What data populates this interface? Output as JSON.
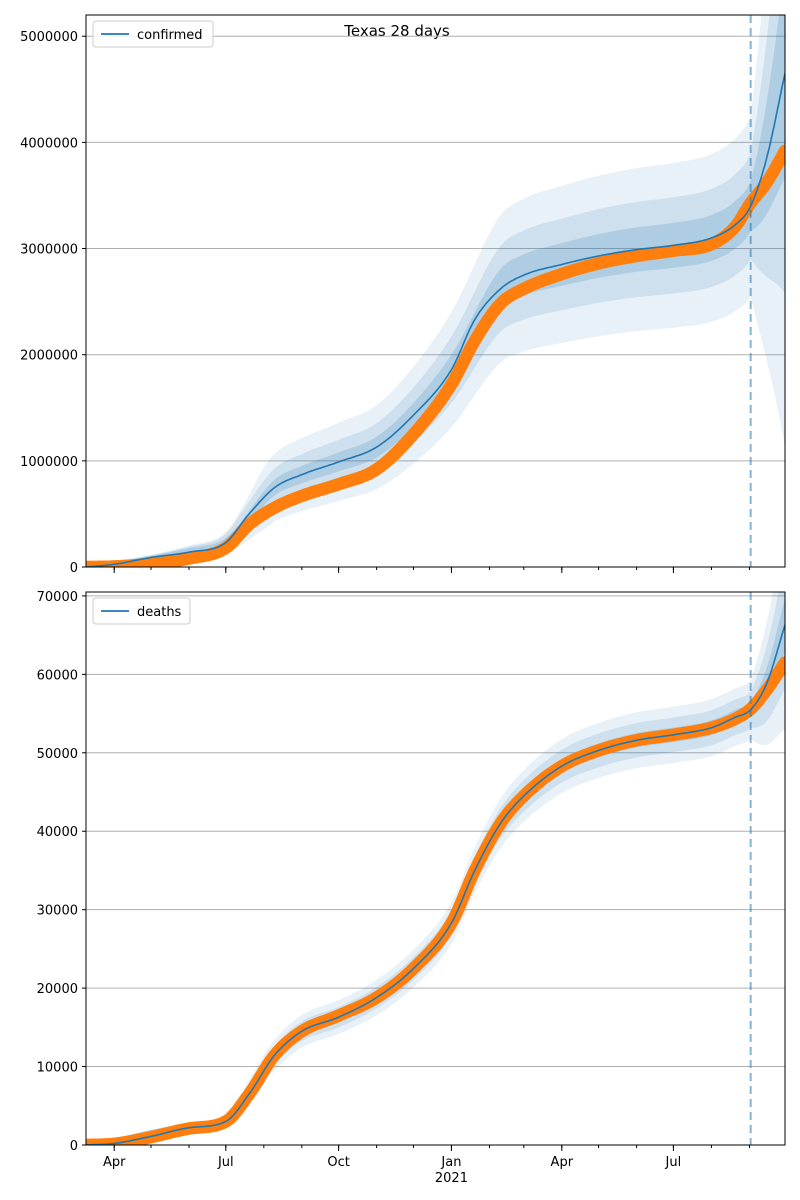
{
  "title": "Texas 28 days",
  "colors": {
    "model": "#1f77b4",
    "observed": "#ff7f0e",
    "band": "#1f77b4",
    "grid": "#b0b0b0",
    "forecast_line": "#1f77b4"
  },
  "x_axis": {
    "month_ticks": [
      {
        "date": "2020-04-01",
        "label": "Apr"
      },
      {
        "date": "2020-07-01",
        "label": "Jul"
      },
      {
        "date": "2020-10-01",
        "label": "Oct"
      },
      {
        "date": "2021-01-01",
        "label": "Jan"
      },
      {
        "date": "2021-04-01",
        "label": "Apr"
      },
      {
        "date": "2021-07-01",
        "label": "Jul"
      }
    ],
    "year_label": "2021",
    "range": [
      "2020-03-09",
      "2021-09-30"
    ]
  },
  "forecast_start": "2021-09-02",
  "chart_data": [
    {
      "type": "line",
      "name": "confirmed",
      "legend": "confirmed",
      "legend_position": "top-left",
      "ylim": [
        0,
        5200000
      ],
      "yticks": [
        0,
        1000000,
        2000000,
        3000000,
        4000000,
        5000000
      ],
      "ytick_labels": [
        "0",
        "1000000",
        "2000000",
        "3000000",
        "4000000",
        "5000000"
      ],
      "grid": "horizontal",
      "model": {
        "x": [
          "2020-03-09",
          "2020-04-01",
          "2020-05-01",
          "2020-06-01",
          "2020-07-01",
          "2020-07-20",
          "2020-08-10",
          "2020-09-01",
          "2020-10-01",
          "2020-11-01",
          "2020-12-01",
          "2021-01-01",
          "2021-01-20",
          "2021-02-10",
          "2021-03-01",
          "2021-04-01",
          "2021-05-01",
          "2021-06-01",
          "2021-07-01",
          "2021-08-01",
          "2021-08-20",
          "2021-09-02",
          "2021-09-15",
          "2021-09-30"
        ],
        "y": [
          0,
          25000,
          90000,
          140000,
          230000,
          500000,
          750000,
          870000,
          990000,
          1130000,
          1430000,
          1860000,
          2330000,
          2620000,
          2750000,
          2850000,
          2930000,
          2990000,
          3030000,
          3100000,
          3220000,
          3400000,
          3850000,
          4650000
        ]
      },
      "bands": {
        "x": [
          "2020-03-09",
          "2020-06-01",
          "2020-07-01",
          "2020-08-10",
          "2020-09-01",
          "2020-10-01",
          "2020-11-01",
          "2020-12-01",
          "2021-01-01",
          "2021-02-10",
          "2021-03-01",
          "2021-04-01",
          "2021-05-01",
          "2021-06-01",
          "2021-07-01",
          "2021-08-01",
          "2021-08-20",
          "2021-09-02",
          "2021-09-15",
          "2021-09-30"
        ],
        "y": [
          0,
          140000,
          230000,
          750000,
          870000,
          990000,
          1130000,
          1430000,
          1860000,
          2620000,
          2750000,
          2850000,
          2930000,
          2990000,
          3030000,
          3100000,
          3220000,
          3400000,
          3850000,
          4650000
        ],
        "spread": [
          [
            0.06,
            30000
          ],
          [
            0.12,
            90000
          ],
          [
            0.2,
            170000
          ]
        ],
        "opacity": [
          0.18,
          0.13,
          0.1
        ]
      },
      "observed": {
        "x": [
          "2020-03-09",
          "2020-04-01",
          "2020-05-01",
          "2020-06-01",
          "2020-07-01",
          "2020-07-20",
          "2020-08-10",
          "2020-09-01",
          "2020-10-01",
          "2020-11-01",
          "2020-12-01",
          "2021-01-01",
          "2021-01-20",
          "2021-02-10",
          "2021-03-01",
          "2021-04-01",
          "2021-05-01",
          "2021-06-01",
          "2021-07-01",
          "2021-08-01",
          "2021-08-20",
          "2021-09-02",
          "2021-09-15",
          "2021-09-30"
        ],
        "y": [
          0,
          5000,
          30000,
          80000,
          180000,
          400000,
          560000,
          670000,
          780000,
          920000,
          1250000,
          1720000,
          2130000,
          2480000,
          2620000,
          2760000,
          2860000,
          2930000,
          2980000,
          3040000,
          3200000,
          3430000,
          3620000,
          3920000
        ]
      }
    },
    {
      "type": "line",
      "name": "deaths",
      "legend": "deaths",
      "legend_position": "top-left",
      "ylim": [
        0,
        70500
      ],
      "yticks": [
        0,
        10000,
        20000,
        30000,
        40000,
        50000,
        60000,
        70000
      ],
      "ytick_labels": [
        "0",
        "10000",
        "20000",
        "30000",
        "40000",
        "50000",
        "60000",
        "70000"
      ],
      "grid": "horizontal",
      "model": {
        "x": [
          "2020-03-09",
          "2020-04-01",
          "2020-05-01",
          "2020-06-01",
          "2020-07-01",
          "2020-07-20",
          "2020-08-10",
          "2020-09-01",
          "2020-10-01",
          "2020-11-01",
          "2020-12-01",
          "2021-01-01",
          "2021-01-20",
          "2021-02-10",
          "2021-03-01",
          "2021-04-01",
          "2021-05-01",
          "2021-06-01",
          "2021-07-01",
          "2021-08-01",
          "2021-08-20",
          "2021-09-02",
          "2021-09-15",
          "2021-09-30"
        ],
        "y": [
          0,
          200,
          1100,
          2200,
          3000,
          6500,
          11500,
          14500,
          16300,
          18800,
          22500,
          28300,
          35000,
          41000,
          44500,
          48300,
          50300,
          51600,
          52300,
          53200,
          54500,
          55500,
          58800,
          66300
        ]
      },
      "bands": {
        "x": [
          "2020-03-09",
          "2020-06-01",
          "2020-07-01",
          "2020-08-10",
          "2020-09-01",
          "2020-10-01",
          "2020-11-01",
          "2020-12-01",
          "2021-01-01",
          "2021-01-20",
          "2021-02-10",
          "2021-03-01",
          "2021-04-01",
          "2021-05-01",
          "2021-06-01",
          "2021-07-01",
          "2021-08-01",
          "2021-08-20",
          "2021-09-02",
          "2021-09-15",
          "2021-09-30"
        ],
        "y": [
          0,
          2200,
          3000,
          11500,
          14500,
          16300,
          18800,
          22500,
          28300,
          35000,
          41000,
          44500,
          48300,
          50300,
          51600,
          52300,
          53200,
          54500,
          55500,
          58800,
          66300
        ],
        "spread": [
          [
            0.01,
            400
          ],
          [
            0.025,
            900
          ],
          [
            0.04,
            1500
          ]
        ],
        "opacity": [
          0.18,
          0.13,
          0.1
        ]
      },
      "observed": {
        "x": [
          "2020-03-09",
          "2020-04-01",
          "2020-05-01",
          "2020-06-01",
          "2020-07-01",
          "2020-07-20",
          "2020-08-10",
          "2020-09-01",
          "2020-10-01",
          "2020-11-01",
          "2020-12-01",
          "2021-01-01",
          "2021-01-20",
          "2021-02-10",
          "2021-03-01",
          "2021-04-01",
          "2021-05-01",
          "2021-06-01",
          "2021-07-01",
          "2021-08-01",
          "2021-08-20",
          "2021-09-02",
          "2021-09-15",
          "2021-09-30"
        ],
        "y": [
          0,
          150,
          1000,
          2100,
          3000,
          6500,
          11500,
          14500,
          16500,
          18800,
          22500,
          28300,
          35000,
          41000,
          44500,
          48300,
          50300,
          51600,
          52300,
          53200,
          54300,
          55600,
          58000,
          61500
        ]
      }
    }
  ]
}
